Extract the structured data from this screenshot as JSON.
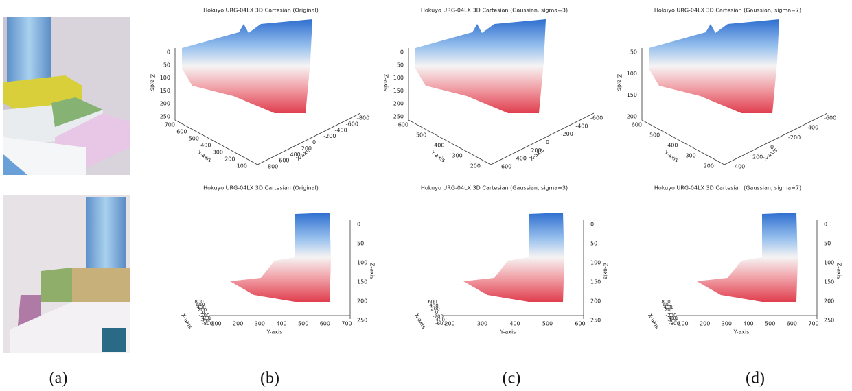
{
  "captions": [
    "(a)",
    "(b)",
    "(c)",
    "(d)"
  ],
  "top_plots": [
    {
      "title": "Hokuyo URG-04LX 3D Cartesian (Original)",
      "z_label": "Z-axis",
      "y_label": "Y-axis",
      "x_label": "X-axis",
      "z_ticks": [
        0,
        50,
        100,
        150,
        200,
        250
      ],
      "y_ticks": [
        700,
        600,
        500,
        400,
        300,
        200,
        100
      ],
      "x_ticks": [
        800,
        600,
        400,
        200,
        0,
        -200,
        -400,
        -600,
        -800
      ]
    },
    {
      "title": "Hokuyo URG-04LX 3D Cartesian (Gaussian, sigma=3)",
      "z_label": "Z-axis",
      "y_label": "Y-axis",
      "x_label": "X-axis",
      "z_ticks": [
        0,
        50,
        100,
        150,
        200,
        250
      ],
      "y_ticks": [
        600,
        500,
        400,
        300,
        200
      ],
      "x_ticks": [
        600,
        400,
        200,
        0,
        -200,
        -400,
        -600
      ]
    },
    {
      "title": "Hokuyo URG-04LX 3D Cartesian (Gaussian, sigma=7)",
      "z_label": "Z-axis",
      "y_label": "Y-axis",
      "x_label": "X-axis",
      "z_ticks": [
        50,
        100,
        150,
        200
      ],
      "y_ticks": [
        600,
        500,
        400,
        300,
        200
      ],
      "x_ticks": [
        400,
        200,
        0,
        -200,
        -400,
        -600
      ]
    }
  ],
  "bottom_plots": [
    {
      "title": "Hokuyo URG-04LX 3D Cartesian (Original)",
      "z_label": "Z-axis",
      "y_label": "Y-axis",
      "x_label": "X-axis",
      "z_ticks": [
        0,
        50,
        100,
        150,
        200,
        250
      ],
      "y_ticks": [
        100,
        200,
        300,
        400,
        500,
        600,
        700
      ],
      "x_ticks": [
        800,
        600,
        400,
        200,
        0,
        -200,
        -400,
        -600,
        -800
      ]
    },
    {
      "title": "Hokuyo URG-04LX 3D Cartesian (Gaussian, sigma=3)",
      "z_label": "Z-axis",
      "y_label": "Y-axis",
      "x_label": "X-axis",
      "z_ticks": [
        0,
        50,
        100,
        150,
        200,
        250
      ],
      "y_ticks": [
        200,
        300,
        400,
        500,
        600
      ],
      "x_ticks": [
        600,
        400,
        200,
        0,
        -200,
        -400,
        -600
      ]
    },
    {
      "title": "Hokuyo URG-04LX 3D Cartesian (Gaussian, sigma=7)",
      "z_label": "Z-axis",
      "y_label": "Y-axis",
      "x_label": "X-axis",
      "z_ticks": [
        0,
        50,
        100,
        150,
        200,
        250
      ],
      "y_ticks": [
        100,
        200,
        300,
        400,
        500,
        600,
        700
      ],
      "x_ticks": [
        800,
        600,
        400,
        200,
        0,
        -200,
        -400,
        -600,
        -800
      ]
    }
  ]
}
